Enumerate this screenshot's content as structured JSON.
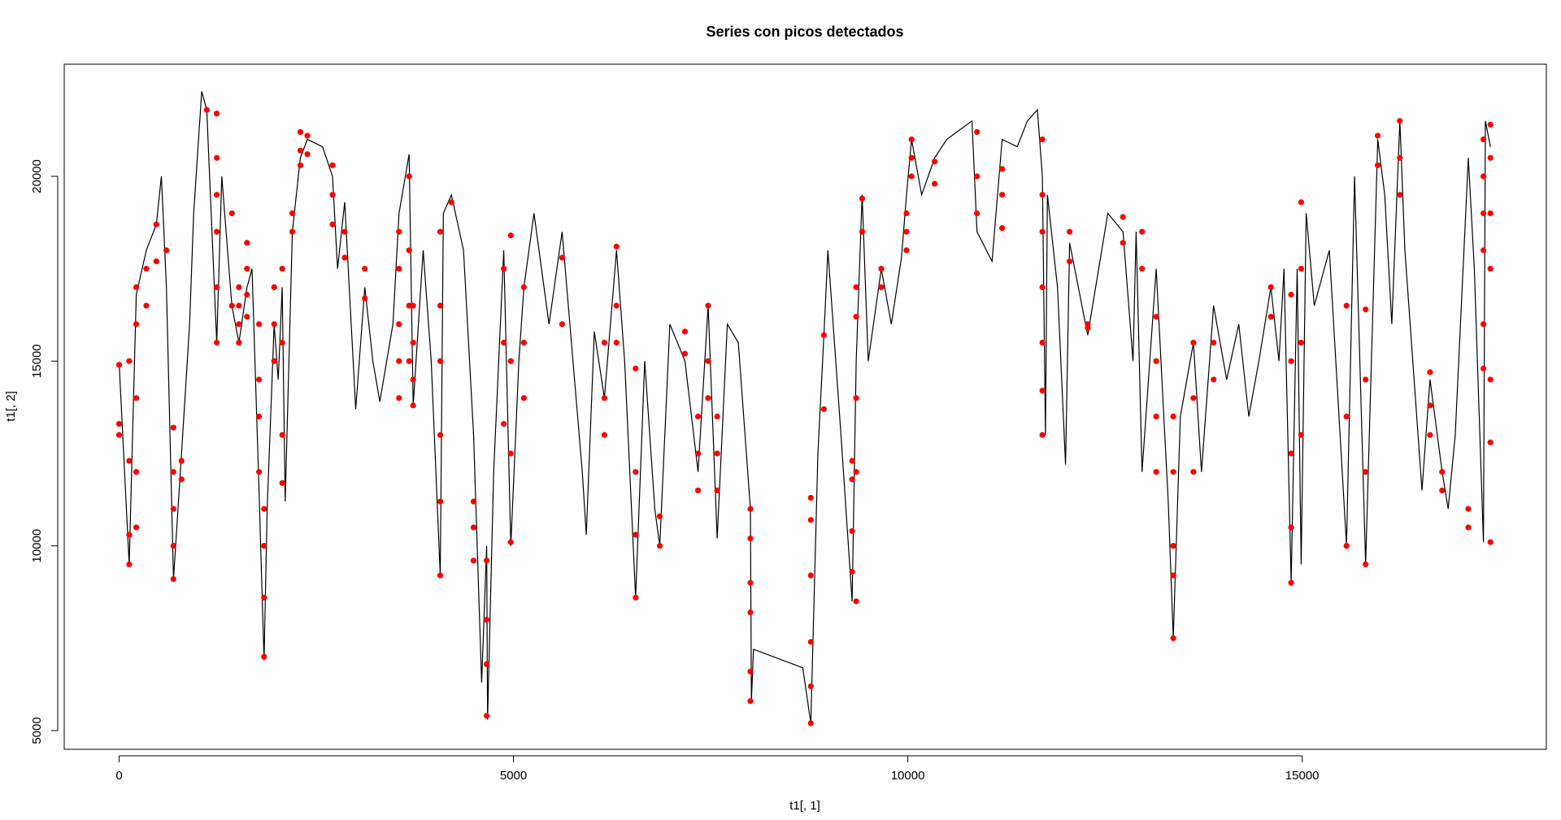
{
  "chart_data": {
    "type": "line",
    "title": "Series con picos detectados",
    "x_label": "t1[, 1]",
    "y_label": "t1[, 2]",
    "xlim": [
      -696,
      18096
    ],
    "ylim": [
      4494,
      23035
    ],
    "xticks": [
      0,
      5000,
      10000,
      15000
    ],
    "yticks": [
      5000,
      10000,
      15000,
      20000
    ],
    "line": {
      "color": "#000000",
      "x": [
        0,
        128,
        217,
        345,
        472,
        536,
        600,
        689,
        791,
        894,
        945,
        1047,
        1111,
        1238,
        1302,
        1430,
        1519,
        1621,
        1685,
        1774,
        1838,
        1877,
        1966,
        2017,
        2068,
        2106,
        2196,
        2298,
        2387,
        2579,
        2706,
        2770,
        2860,
        3000,
        3115,
        3217,
        3306,
        3472,
        3549,
        3677,
        3728,
        3855,
        3957,
        4072,
        4111,
        4213,
        4366,
        4494,
        4596,
        4660,
        4672,
        4749,
        4877,
        4966,
        5068,
        5132,
        5260,
        5451,
        5617,
        5872,
        5923,
        6025,
        6153,
        6306,
        6409,
        6549,
        6664,
        6792,
        6855,
        6983,
        7174,
        7340,
        7468,
        7583,
        7711,
        7851,
        8004,
        8017,
        8043,
        8668,
        8770,
        8860,
        8936,
        8987,
        9153,
        9294,
        9345,
        9421,
        9498,
        9664,
        9791,
        9919,
        9983,
        10047,
        10175,
        10340,
        10494,
        10813,
        10877,
        11068,
        11196,
        11387,
        11515,
        11643,
        11706,
        11745,
        11770,
        11898,
        12000,
        12051,
        12281,
        12536,
        12728,
        12855,
        12894,
        12970,
        13149,
        13302,
        13366,
        13455,
        13621,
        13723,
        13877,
        14043,
        14196,
        14323,
        14451,
        14604,
        14706,
        14770,
        14860,
        14936,
        14987,
        15051,
        15153,
        15345,
        15562,
        15664,
        15804,
        15958,
        16047,
        16136,
        16238,
        16302,
        16519,
        16621,
        16774,
        16851,
        16940,
        17106,
        17183,
        17298,
        17323,
        17387
      ],
      "values": [
        14960,
        9500,
        16800,
        18000,
        18700,
        20000,
        17000,
        9100,
        12500,
        16000,
        19000,
        22300,
        21800,
        15500,
        20000,
        16500,
        15500,
        17000,
        17500,
        11500,
        6900,
        11000,
        16000,
        14500,
        17000,
        11200,
        18500,
        20500,
        21000,
        20800,
        20000,
        17500,
        19300,
        13700,
        17000,
        15000,
        13900,
        16000,
        19000,
        20600,
        13800,
        18000,
        15000,
        9200,
        19000,
        19500,
        18000,
        13000,
        6300,
        10000,
        5300,
        12000,
        18000,
        10000,
        15000,
        17000,
        19000,
        16000,
        18500,
        12000,
        10300,
        15800,
        14000,
        18000,
        15000,
        8600,
        15000,
        11000,
        10000,
        16000,
        15000,
        12000,
        16500,
        10200,
        16000,
        15500,
        11000,
        5800,
        7200,
        6700,
        5200,
        12500,
        15700,
        18000,
        13000,
        8500,
        15000,
        19500,
        15000,
        17500,
        16000,
        17800,
        19500,
        21000,
        19500,
        20500,
        21000,
        21500,
        18500,
        17700,
        21000,
        20800,
        21500,
        21800,
        20000,
        13000,
        19500,
        17000,
        12200,
        18200,
        15700,
        19000,
        18500,
        15000,
        18500,
        12000,
        17500,
        11200,
        7500,
        13500,
        15500,
        12000,
        16500,
        14500,
        16000,
        13500,
        15000,
        17000,
        15000,
        17500,
        9000,
        17500,
        9500,
        19000,
        16500,
        18000,
        10000,
        20000,
        9500,
        21000,
        19500,
        16000,
        21500,
        18000,
        11500,
        14500,
        12000,
        11000,
        13000,
        20500,
        17500,
        10100,
        21500,
        20800
      ]
    },
    "peaks": {
      "color": "#ff0000",
      "x": [
        0,
        0,
        0,
        128,
        128,
        128,
        128,
        217,
        217,
        217,
        217,
        217,
        345,
        345,
        472,
        472,
        600,
        689,
        689,
        689,
        689,
        689,
        791,
        791,
        1111,
        1238,
        1238,
        1238,
        1238,
        1238,
        1238,
        1430,
        1430,
        1519,
        1519,
        1519,
        1519,
        1621,
        1621,
        1621,
        1621,
        1774,
        1774,
        1774,
        1774,
        1838,
        1838,
        1838,
        1838,
        1966,
        1966,
        1966,
        2068,
        2068,
        2068,
        2068,
        2196,
        2196,
        2298,
        2298,
        2298,
        2387,
        2387,
        2706,
        2706,
        2706,
        2860,
        2860,
        3115,
        3115,
        3549,
        3549,
        3549,
        3549,
        3549,
        3677,
        3677,
        3677,
        3677,
        3728,
        3728,
        3728,
        3728,
        4072,
        4072,
        4072,
        4072,
        4072,
        4072,
        4213,
        4494,
        4494,
        4494,
        4660,
        4660,
        4660,
        4660,
        4877,
        4877,
        4877,
        4966,
        4966,
        4966,
        4966,
        5132,
        5132,
        5132,
        5617,
        5617,
        6153,
        6153,
        6153,
        6306,
        6306,
        6306,
        6549,
        6549,
        6549,
        6549,
        6855,
        6855,
        7174,
        7174,
        7340,
        7340,
        7340,
        7468,
        7468,
        7468,
        7583,
        7583,
        7583,
        8004,
        8004,
        8004,
        8004,
        8004,
        8004,
        8770,
        8770,
        8770,
        8770,
        8770,
        8770,
        8936,
        8936,
        9294,
        9294,
        9294,
        9294,
        9345,
        9345,
        9345,
        9345,
        9345,
        9421,
        9421,
        9664,
        9664,
        9983,
        9983,
        9983,
        10047,
        10047,
        10047,
        10340,
        10340,
        10877,
        10877,
        10877,
        11196,
        11196,
        11196,
        11706,
        11706,
        11706,
        11706,
        11706,
        11706,
        11706,
        12051,
        12051,
        12281,
        12281,
        12728,
        12728,
        12970,
        12970,
        13149,
        13149,
        13149,
        13149,
        13366,
        13366,
        13366,
        13366,
        13366,
        13621,
        13621,
        13621,
        13877,
        13877,
        14604,
        14604,
        14860,
        14860,
        14860,
        14860,
        14860,
        14987,
        14987,
        14987,
        14987,
        15562,
        15562,
        15562,
        15804,
        15804,
        15804,
        15804,
        15958,
        15958,
        16238,
        16238,
        16238,
        16621,
        16621,
        16621,
        16774,
        16774,
        17106,
        17106,
        17298,
        17298,
        17298,
        17298,
        17298,
        17298,
        17387,
        17387,
        17387,
        17387,
        17387,
        17387,
        17387
      ],
      "values": [
        14900,
        13300,
        13000,
        15000,
        12300,
        10300,
        9500,
        17000,
        16000,
        14000,
        12000,
        10500,
        17500,
        16500,
        18700,
        17700,
        18000,
        13200,
        12000,
        11000,
        10000,
        9100,
        12300,
        11800,
        21800,
        21700,
        20500,
        19500,
        18500,
        17000,
        15500,
        19000,
        16500,
        17000,
        16500,
        16000,
        15500,
        18200,
        17500,
        16800,
        16200,
        16000,
        14500,
        13500,
        12000,
        11000,
        10000,
        8600,
        7000,
        17000,
        16000,
        15000,
        17500,
        15500,
        13000,
        11700,
        19000,
        18500,
        21200,
        20700,
        20300,
        21100,
        20600,
        20300,
        19500,
        18700,
        18500,
        17800,
        17500,
        16700,
        18500,
        17500,
        16000,
        15000,
        14000,
        20000,
        18000,
        16500,
        15000,
        16500,
        15500,
        14500,
        13800,
        18500,
        16500,
        15000,
        13000,
        11200,
        9200,
        19300,
        11200,
        10500,
        9600,
        9600,
        8000,
        6800,
        5400,
        17500,
        15500,
        13300,
        18400,
        15000,
        12500,
        10100,
        17000,
        15500,
        14000,
        17800,
        16000,
        15500,
        14000,
        13000,
        18100,
        16500,
        15500,
        14800,
        12000,
        10300,
        8600,
        10800,
        10000,
        15800,
        15200,
        13500,
        12500,
        11500,
        16500,
        15000,
        14000,
        13500,
        12500,
        11500,
        11000,
        10200,
        9000,
        8200,
        6600,
        5800,
        11300,
        10700,
        9200,
        7400,
        6200,
        5200,
        15700,
        13700,
        12300,
        11800,
        10400,
        9300,
        17000,
        16200,
        14000,
        12000,
        8500,
        19400,
        18500,
        17500,
        17000,
        19000,
        18500,
        18000,
        21000,
        20500,
        20000,
        20400,
        19800,
        21200,
        20000,
        19000,
        20200,
        19500,
        18600,
        21000,
        19500,
        18500,
        17000,
        15500,
        14200,
        13000,
        18500,
        17700,
        16000,
        15900,
        18900,
        18200,
        18500,
        17500,
        16200,
        15000,
        13500,
        12000,
        13500,
        12000,
        10000,
        9200,
        7500,
        15500,
        14000,
        12000,
        15500,
        14500,
        17000,
        16200,
        16800,
        15000,
        12500,
        10500,
        9000,
        19300,
        17500,
        15500,
        13000,
        16500,
        13500,
        10000,
        16400,
        14500,
        12000,
        9500,
        21100,
        20300,
        21500,
        20500,
        19500,
        14700,
        13800,
        13000,
        12000,
        11500,
        11000,
        10500,
        21000,
        20000,
        19000,
        18000,
        16000,
        14800,
        21400,
        20500,
        19000,
        17500,
        14500,
        12800,
        10100
      ]
    }
  }
}
